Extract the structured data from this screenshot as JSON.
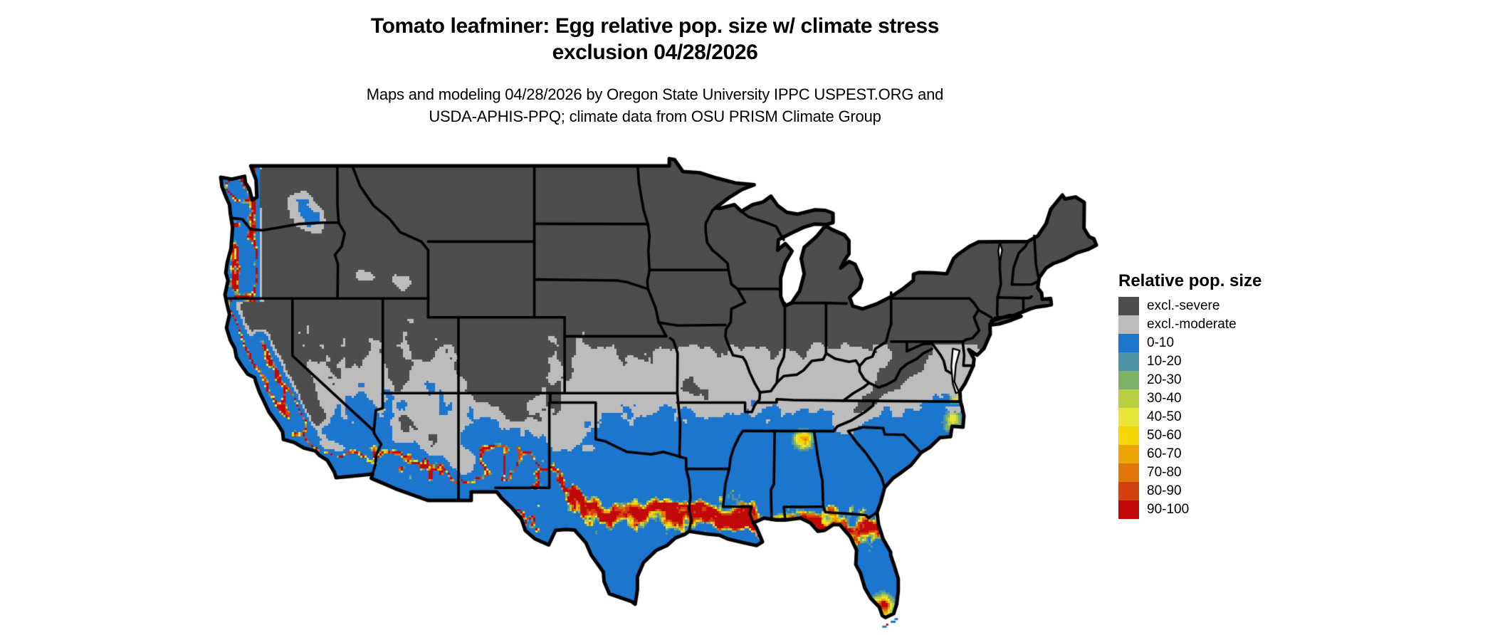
{
  "title": {
    "line1": "Tomato leafminer: Egg relative pop. size w/ climate stress",
    "line2": "exclusion 04/28/2026"
  },
  "subtitle": {
    "line1": "Maps and modeling 04/28/2026 by Oregon State University IPPC USPEST.ORG and",
    "line2": "USDA-APHIS-PPQ; climate data from OSU PRISM Climate Group"
  },
  "legend": {
    "title": "Relative pop. size",
    "items": [
      {
        "label": "excl.-severe",
        "color": "#4d4d4d"
      },
      {
        "label": "excl.-moderate",
        "color": "#bcbcbc"
      },
      {
        "label": "0-10",
        "color": "#1d76cd"
      },
      {
        "label": "10-20",
        "color": "#4e93a6"
      },
      {
        "label": "20-30",
        "color": "#7cb266"
      },
      {
        "label": "30-40",
        "color": "#b8cf42"
      },
      {
        "label": "40-50",
        "color": "#e8e539"
      },
      {
        "label": "50-60",
        "color": "#f5d505"
      },
      {
        "label": "60-70",
        "color": "#eda606"
      },
      {
        "label": "70-80",
        "color": "#e17509"
      },
      {
        "label": "80-90",
        "color": "#d2400d"
      },
      {
        "label": "90-100",
        "color": "#c10909"
      }
    ]
  },
  "map": {
    "background": "#ffffff",
    "border_color": "#000000"
  }
}
